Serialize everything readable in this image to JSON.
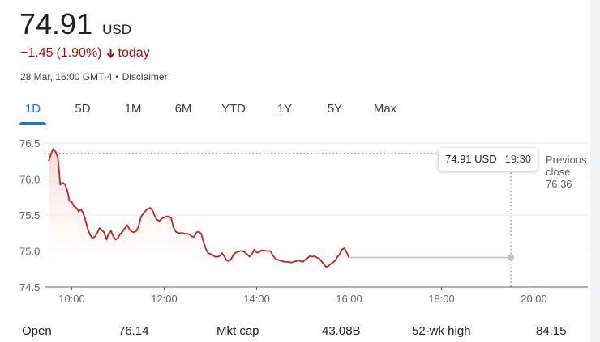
{
  "quote": {
    "price": "74.91",
    "currency": "USD",
    "change": "−1.45",
    "change_pct": "(1.90%)",
    "change_period": "today",
    "timestamp": "28 Mar, 16:00 GMT-4",
    "separator": "•",
    "disclaimer": "Disclaimer"
  },
  "tabs": [
    {
      "label": "1D",
      "active": true
    },
    {
      "label": "5D",
      "active": false
    },
    {
      "label": "1M",
      "active": false
    },
    {
      "label": "6M",
      "active": false
    },
    {
      "label": "YTD",
      "active": false
    },
    {
      "label": "1Y",
      "active": false
    },
    {
      "label": "5Y",
      "active": false
    },
    {
      "label": "Max",
      "active": false
    }
  ],
  "tooltip": {
    "price": "74.91 USD",
    "time": "19:30"
  },
  "previous_close": {
    "line1": "Previous",
    "line2": "close",
    "value": "76.36"
  },
  "colors": {
    "line": "#c5221f",
    "fill_top": "#fbd5d3",
    "accent": "#1a73e8",
    "negative": "#a50e0e"
  },
  "chart_data": {
    "type": "line",
    "title": "",
    "xlabel": "",
    "ylabel": "",
    "x_ticks": [
      10,
      12,
      14,
      16,
      18,
      20
    ],
    "x_tick_labels": [
      "10:00",
      "12:00",
      "14:00",
      "16:00",
      "18:00",
      "20:00"
    ],
    "y_ticks": [
      74.5,
      75.0,
      75.5,
      76.0,
      76.5
    ],
    "y_tick_labels": [
      "74.5",
      "75.0",
      "75.5",
      "76.0",
      "76.5"
    ],
    "xlim": [
      9.5,
      20.5
    ],
    "ylim": [
      74.5,
      76.5
    ],
    "previous_close": 76.36,
    "grid": "horizontal",
    "series": [
      {
        "x": [
          9.5,
          9.55,
          9.6,
          9.65,
          9.7,
          9.75,
          9.8,
          9.85,
          9.9,
          9.95,
          10.0,
          10.05,
          10.1,
          10.15,
          10.2,
          10.25,
          10.3,
          10.35,
          10.4,
          10.45,
          10.5,
          10.55,
          10.6,
          10.65,
          10.7,
          10.75,
          10.8,
          10.85,
          10.9,
          10.95,
          11.0,
          11.05,
          11.1,
          11.15,
          11.2,
          11.25,
          11.3,
          11.35,
          11.4,
          11.45,
          11.5,
          11.55,
          11.6,
          11.65,
          11.7,
          11.75,
          11.8,
          11.85,
          11.9,
          11.95,
          12.0,
          12.05,
          12.1,
          12.15,
          12.2,
          12.25,
          12.3,
          12.35,
          12.4,
          12.45,
          12.5,
          12.55,
          12.6,
          12.65,
          12.7,
          12.75,
          12.8,
          12.85,
          12.9,
          12.95,
          13.0,
          13.05,
          13.1,
          13.15,
          13.2,
          13.25,
          13.3,
          13.35,
          13.4,
          13.45,
          13.5,
          13.55,
          13.6,
          13.65,
          13.7,
          13.75,
          13.8,
          13.85,
          13.9,
          13.95,
          14.0,
          14.05,
          14.1,
          14.15,
          14.2,
          14.25,
          14.3,
          14.35,
          14.4,
          14.45,
          14.5,
          14.55,
          14.6,
          14.65,
          14.7,
          14.75,
          14.8,
          14.85,
          14.9,
          14.95,
          15.0,
          15.05,
          15.1,
          15.15,
          15.2,
          15.25,
          15.3,
          15.35,
          15.4,
          15.45,
          15.5,
          15.55,
          15.6,
          15.65,
          15.7,
          15.75,
          15.8,
          15.85,
          15.9,
          15.95,
          16.0
        ],
        "values": [
          76.25,
          76.35,
          76.42,
          76.38,
          76.3,
          75.92,
          75.95,
          75.93,
          75.85,
          75.7,
          75.68,
          75.62,
          75.6,
          75.55,
          75.58,
          75.52,
          75.42,
          75.3,
          75.22,
          75.18,
          75.2,
          75.25,
          75.32,
          75.29,
          75.26,
          75.16,
          75.24,
          75.28,
          75.2,
          75.16,
          75.18,
          75.24,
          75.27,
          75.32,
          75.36,
          75.3,
          75.27,
          75.26,
          75.28,
          75.35,
          75.48,
          75.52,
          75.56,
          75.59,
          75.6,
          75.56,
          75.48,
          75.43,
          75.42,
          75.45,
          75.47,
          75.48,
          75.48,
          75.46,
          75.33,
          75.27,
          75.25,
          75.25,
          75.25,
          75.24,
          75.24,
          75.23,
          75.2,
          75.2,
          75.26,
          75.27,
          75.24,
          75.13,
          75.03,
          74.97,
          74.96,
          74.94,
          74.92,
          74.92,
          74.93,
          74.97,
          74.93,
          74.87,
          74.86,
          74.89,
          74.95,
          74.98,
          74.99,
          75.0,
          75.0,
          74.98,
          74.95,
          74.92,
          74.96,
          75.02,
          74.98,
          74.98,
          75.01,
          75.01,
          75.0,
          75.0,
          75.0,
          74.94,
          74.9,
          74.88,
          74.87,
          74.86,
          74.85,
          74.85,
          74.85,
          74.84,
          74.85,
          74.86,
          74.87,
          74.86,
          74.85,
          74.88,
          74.9,
          74.93,
          74.92,
          74.93,
          74.91,
          74.9,
          74.86,
          74.82,
          74.78,
          74.79,
          74.82,
          74.84,
          74.87,
          74.92,
          74.96,
          75.02,
          75.04,
          74.98,
          74.91
        ],
        "after_hours": {
          "x": [
            16.0,
            19.5
          ],
          "values": [
            74.91,
            74.91
          ]
        }
      }
    ],
    "marker": {
      "x": 19.5,
      "value": 74.91
    }
  },
  "stats": [
    {
      "label": "Open",
      "value": "76.14"
    },
    {
      "label": "Mkt cap",
      "value": "43.08B"
    },
    {
      "label": "52-wk high",
      "value": "84.15"
    }
  ]
}
